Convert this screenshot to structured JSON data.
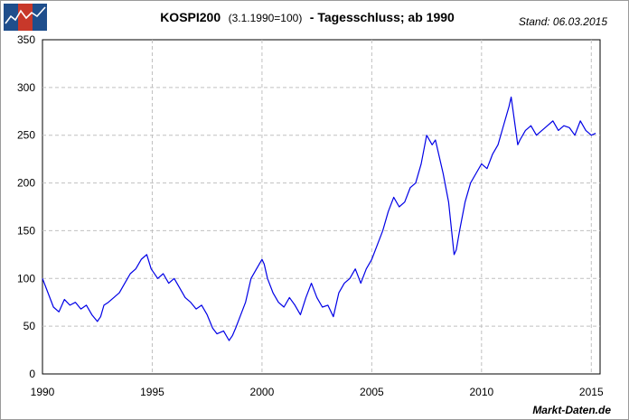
{
  "header": {
    "title_bold": "KOSPI200",
    "title_paren": "(3.1.1990=100)",
    "title_rest": "- Tagesschluss; ab 1990",
    "stand": "Stand: 06.03.2015"
  },
  "footer": {
    "source": "Markt-Daten.de"
  },
  "colors": {
    "series": "#0000e6",
    "grid": "#c0c0c0",
    "logo_blue": "#1f4e8c",
    "logo_red": "#c8382a"
  },
  "logo": {
    "icon": "rising-chart-logo-icon"
  },
  "chart_data": {
    "type": "line",
    "title": "KOSPI200 (3.1.1990=100) - Tagesschluss; ab 1990",
    "xlabel": "",
    "ylabel": "",
    "xlim": [
      1990,
      2015.4
    ],
    "ylim": [
      0,
      350
    ],
    "grid": true,
    "x_ticks": [
      "1990",
      "1995",
      "2000",
      "2005",
      "2010",
      "2015"
    ],
    "y_ticks": [
      "0",
      "50",
      "100",
      "150",
      "200",
      "250",
      "300",
      "350"
    ],
    "series": [
      {
        "x": [
          1990.0,
          1990.25,
          1990.5,
          1990.75,
          1991.0,
          1991.25,
          1991.5,
          1991.75,
          1992.0,
          1992.25,
          1992.5,
          1992.65,
          1992.8,
          1993.0,
          1993.25,
          1993.5,
          1993.75,
          1994.0,
          1994.25,
          1994.5,
          1994.75,
          1994.95,
          1995.25,
          1995.5,
          1995.75,
          1996.0,
          1996.25,
          1996.5,
          1996.75,
          1997.0,
          1997.25,
          1997.5,
          1997.75,
          1997.95,
          1998.25,
          1998.5,
          1998.65,
          1998.8,
          1999.0,
          1999.25,
          1999.5,
          1999.75,
          2000.0,
          2000.1,
          2000.25,
          2000.5,
          2000.75,
          2001.0,
          2001.25,
          2001.5,
          2001.75,
          2002.0,
          2002.25,
          2002.5,
          2002.75,
          2003.0,
          2003.25,
          2003.5,
          2003.75,
          2004.0,
          2004.25,
          2004.5,
          2004.75,
          2005.0,
          2005.25,
          2005.5,
          2005.75,
          2006.0,
          2006.25,
          2006.5,
          2006.75,
          2007.0,
          2007.25,
          2007.5,
          2007.75,
          2007.9,
          2008.25,
          2008.5,
          2008.75,
          2008.85,
          2009.0,
          2009.25,
          2009.5,
          2009.75,
          2010.0,
          2010.25,
          2010.5,
          2010.75,
          2011.0,
          2011.25,
          2011.35,
          2011.5,
          2011.65,
          2011.75,
          2012.0,
          2012.25,
          2012.5,
          2012.75,
          2013.0,
          2013.25,
          2013.5,
          2013.75,
          2014.0,
          2014.25,
          2014.5,
          2014.75,
          2015.0,
          2015.2
        ],
        "values": [
          100,
          85,
          70,
          65,
          78,
          72,
          75,
          68,
          72,
          62,
          55,
          60,
          72,
          75,
          80,
          85,
          95,
          105,
          110,
          120,
          125,
          110,
          100,
          105,
          95,
          100,
          90,
          80,
          75,
          68,
          72,
          62,
          48,
          42,
          45,
          35,
          40,
          48,
          60,
          75,
          100,
          110,
          120,
          115,
          100,
          85,
          75,
          70,
          80,
          72,
          62,
          80,
          95,
          80,
          70,
          72,
          60,
          85,
          95,
          100,
          110,
          95,
          110,
          120,
          135,
          150,
          170,
          185,
          175,
          180,
          195,
          200,
          220,
          250,
          240,
          245,
          210,
          180,
          125,
          130,
          150,
          180,
          200,
          210,
          220,
          215,
          230,
          240,
          260,
          280,
          290,
          265,
          240,
          245,
          255,
          260,
          250,
          255,
          260,
          265,
          255,
          260,
          258,
          250,
          265,
          255,
          250,
          252
        ]
      }
    ]
  }
}
